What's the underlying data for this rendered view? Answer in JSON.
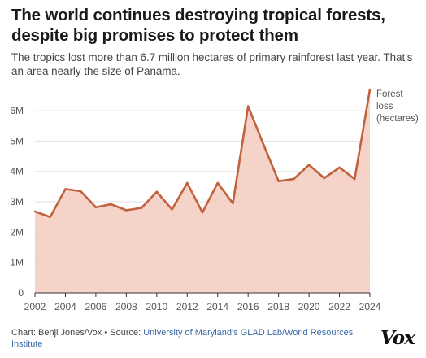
{
  "header": {
    "title": "The world continues destroying tropical forests, despite big promises to protect them",
    "subtitle": "The tropics lost more than 6.7 million hectares of primary rainforest last year. That's an area nearly the size of Panama."
  },
  "chart_data": {
    "type": "area",
    "x": [
      2002,
      2003,
      2004,
      2005,
      2006,
      2007,
      2008,
      2009,
      2010,
      2011,
      2012,
      2013,
      2014,
      2015,
      2016,
      2017,
      2018,
      2019,
      2020,
      2021,
      2022,
      2023,
      2024
    ],
    "series": [
      {
        "name": "Forest loss (hectares)",
        "values": [
          2.68,
          2.5,
          3.42,
          3.35,
          2.82,
          2.92,
          2.72,
          2.8,
          3.33,
          2.75,
          3.62,
          2.65,
          3.62,
          2.95,
          6.15,
          4.9,
          3.68,
          3.75,
          4.22,
          3.78,
          4.13,
          3.75,
          6.7
        ]
      }
    ],
    "legend_lines": [
      "Forest",
      "loss",
      "(hectares)"
    ],
    "ylim": [
      0,
      6.7
    ],
    "yticks": [
      0,
      1,
      2,
      3,
      4,
      5,
      6
    ],
    "ytick_labels": [
      "0",
      "1M",
      "2M",
      "3M",
      "4M",
      "5M",
      "6M"
    ],
    "xticks": [
      2002,
      2004,
      2006,
      2008,
      2010,
      2012,
      2014,
      2016,
      2018,
      2020,
      2022,
      2024
    ],
    "xlabel": "",
    "ylabel": "",
    "grid": true,
    "colors": {
      "line": "#c1623f",
      "fill": "#f3cbbf",
      "grid": "#e2e2e2",
      "axis": "#333333"
    }
  },
  "footer": {
    "credit": "Chart: Benji Jones/Vox • Source: ",
    "source_link": "University of Maryland's GLAD Lab/World Resources Institute",
    "logo": "Vox"
  }
}
